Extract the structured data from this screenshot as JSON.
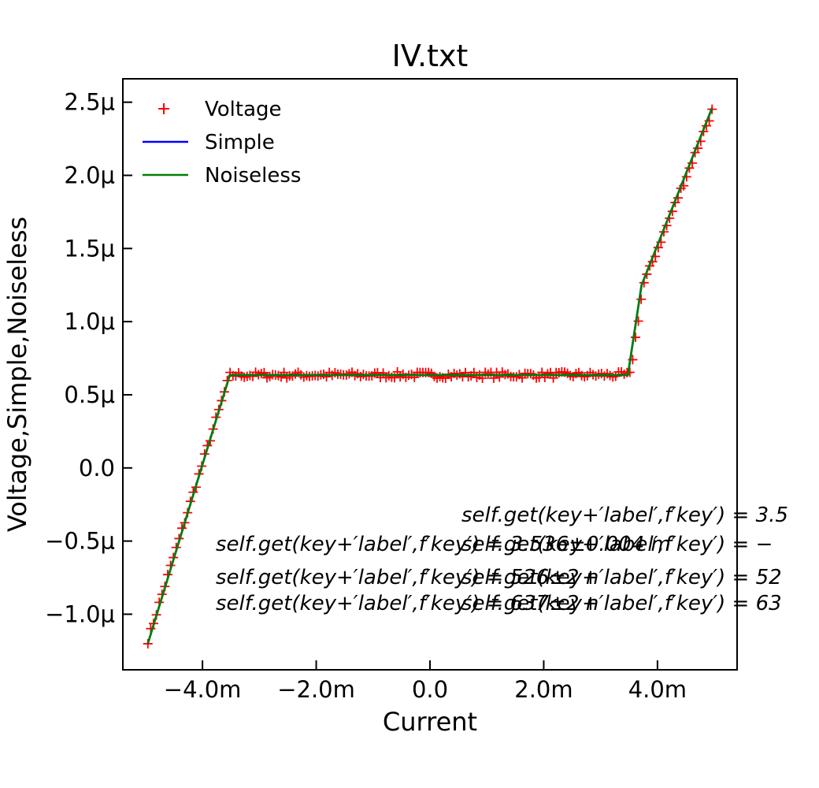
{
  "chart_data": {
    "type": "line",
    "title": "IV.txt",
    "xlabel": "Current",
    "ylabel": "Voltage,Simple,Noiseless",
    "xlim": [
      -0.0054,
      0.0054
    ],
    "ylim": [
      -1.38e-06,
      2.66e-06
    ],
    "x_ticks": [
      -0.004,
      -0.002,
      0.0,
      0.002,
      0.004
    ],
    "x_tick_labels": [
      "−4.0m",
      "−2.0m",
      "0.0",
      "2.0m",
      "4.0m"
    ],
    "y_ticks": [
      -1e-06,
      -5e-07,
      0.0,
      5e-07,
      1e-06,
      1.5e-06,
      2e-06,
      2.5e-06
    ],
    "y_tick_labels": [
      "−1.0μ",
      "−0.5μ",
      "0.0",
      "0.5μ",
      "1.0μ",
      "1.5μ",
      "2.0μ",
      "2.5μ"
    ],
    "grid": false,
    "legend_position": "top-left",
    "series": [
      {
        "name": "Voltage",
        "kind": "scatter",
        "marker": "+",
        "color": "#ff0000",
        "model": {
          "ic_neg": -0.00352,
          "ic_pos": 0.00352,
          "v_plateau": 6.35e-07,
          "x_min": -0.00496,
          "x_max": 0.00496,
          "v_at_xmin": -1.18e-06,
          "v_at_xmax": 2.44e-06,
          "v_knee_pos": 1.25e-06,
          "x_knee_pos": 0.00375,
          "count": 200,
          "noise": 2.2e-08
        }
      },
      {
        "name": "Simple",
        "kind": "line",
        "color": "#0000ff",
        "points": [
          [
            -0.00496,
            -1.2e-06
          ],
          [
            -0.00352,
            6.35e-07
          ],
          [
            0.00348,
            6.35e-07
          ],
          [
            0.00372,
            1.25e-06
          ],
          [
            0.00496,
            2.46e-06
          ]
        ]
      },
      {
        "name": "Noiseless",
        "kind": "line",
        "color": "#008000",
        "points": [
          [
            -0.00496,
            -1.2e-06
          ],
          [
            -0.00352,
            6.35e-07
          ],
          [
            0.00348,
            6.35e-07
          ],
          [
            0.00372,
            1.25e-06
          ],
          [
            0.00496,
            2.46e-06
          ]
        ]
      }
    ],
    "annotations": [
      "self.get(key+′label′,f′key′) = 3.5",
      "self.get(key+′label′,f′key′) = 3.536±0.004 m",
      "self.get(key+′label′,f′key′) = −",
      "self.get(key+′label′,f′key′) = 526±2 n",
      "self.get(key+′label′,f′key′) = 52",
      "self.get(key+′label′,f′key′) = 637±2 n",
      "self.get(key+′label′,f′key′) = 63"
    ]
  }
}
